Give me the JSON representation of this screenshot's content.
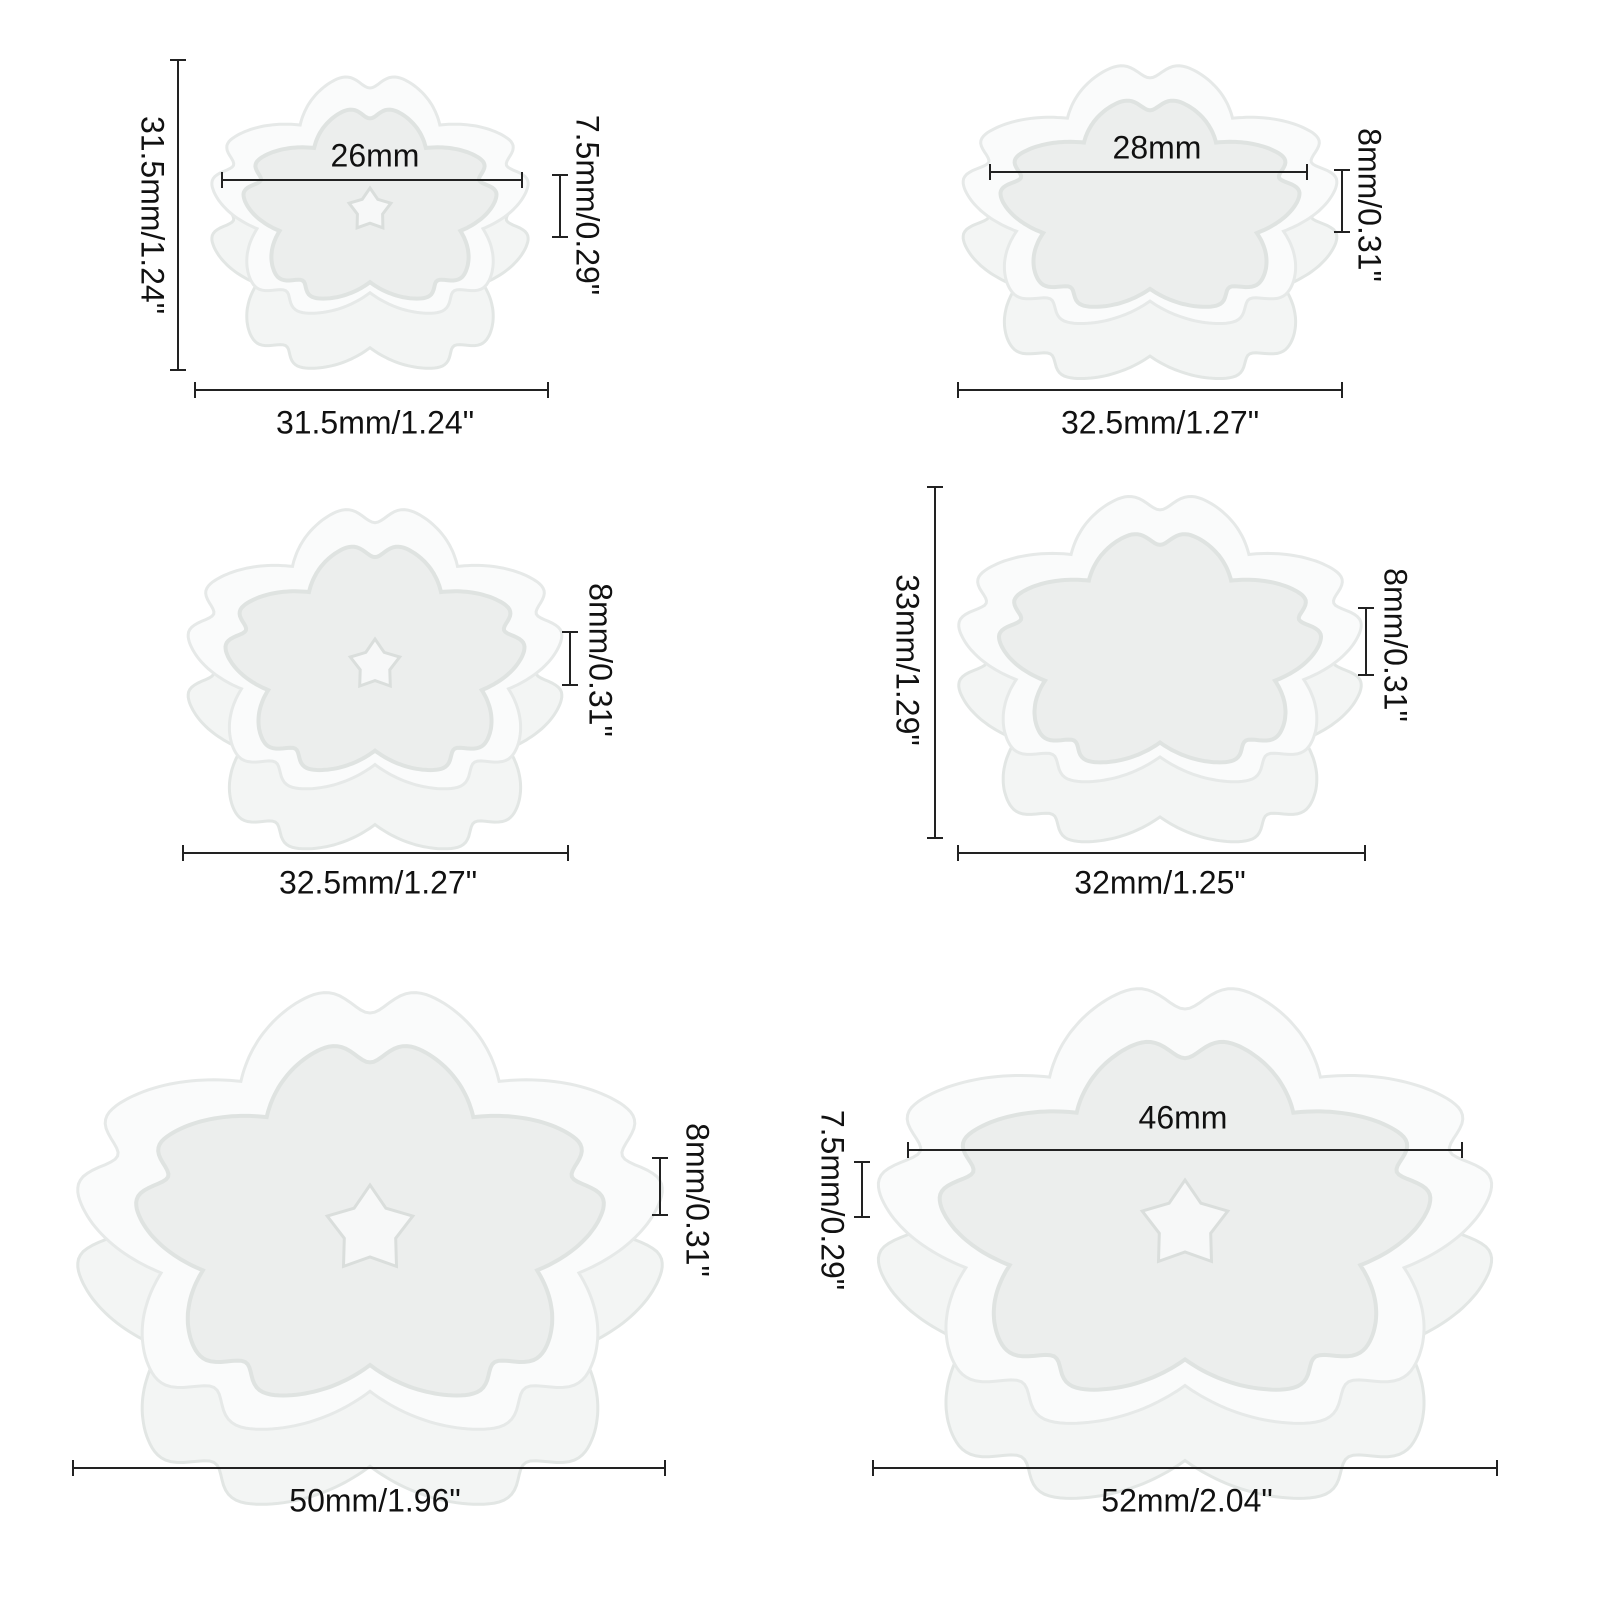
{
  "molds": [
    {
      "height": "31.5mm/1.24\"",
      "inner": "26mm",
      "depth": "7.5mm/0.29\"",
      "width": "31.5mm/1.24\""
    },
    {
      "inner": "28mm",
      "depth": "8mm/0.31\"",
      "width": "32.5mm/1.27\""
    },
    {
      "depth": "8mm/0.31\"",
      "width": "32.5mm/1.27\""
    },
    {
      "height": "33mm/1.29\"",
      "depth": "8mm/0.31\"",
      "width": "32mm/1.25\""
    },
    {
      "depth": "8mm/0.31\"",
      "width": "50mm/1.96\""
    },
    {
      "inner": "46mm",
      "depth": "7.5mm/0.29\"",
      "width": "52mm/2.04\""
    }
  ]
}
